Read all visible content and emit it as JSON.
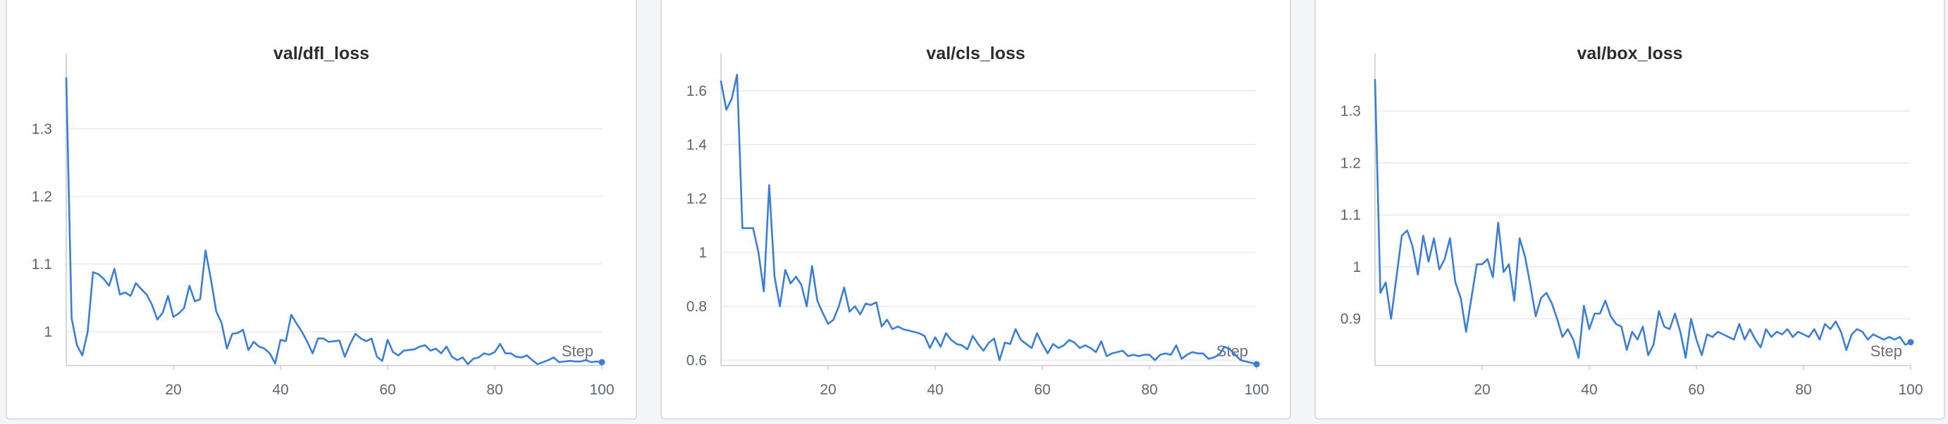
{
  "colors": {
    "line": "#3a7fd5",
    "grid": "#e8e9ec",
    "axis": "#c9ccd2",
    "text": "#5f6570"
  },
  "chart_data": [
    {
      "type": "line",
      "title": "val/dfl_loss",
      "xlabel": "Step",
      "ylabel": "",
      "xlim": [
        0,
        100
      ],
      "ylim": [
        0.95,
        1.38
      ],
      "xticks": [
        20,
        40,
        60,
        80,
        100
      ],
      "yticks": [
        1,
        1.1,
        1.2,
        1.3
      ],
      "ytick_labels": [
        "1",
        "1.1",
        "1.2",
        "1.3"
      ],
      "grid": true,
      "series": [
        {
          "values": [
            1.375,
            1.02,
            0.98,
            0.965,
            1.0,
            1.088,
            1.085,
            1.078,
            1.068,
            1.093,
            1.055,
            1.058,
            1.053,
            1.072,
            1.063,
            1.055,
            1.04,
            1.018,
            1.028,
            1.053,
            1.022,
            1.027,
            1.035,
            1.068,
            1.045,
            1.048,
            1.12,
            1.078,
            1.03,
            1.013,
            0.975,
            0.997,
            0.998,
            1.003,
            0.973,
            0.985,
            0.978,
            0.975,
            0.968,
            0.953,
            0.988,
            0.986,
            1.025,
            1.012,
            1.0,
            0.985,
            0.968,
            0.99,
            0.99,
            0.985,
            0.986,
            0.987,
            0.963,
            0.982,
            0.997,
            0.99,
            0.986,
            0.99,
            0.963,
            0.957,
            0.988,
            0.97,
            0.965,
            0.972,
            0.973,
            0.974,
            0.978,
            0.98,
            0.972,
            0.975,
            0.968,
            0.978,
            0.963,
            0.958,
            0.962,
            0.952,
            0.96,
            0.962,
            0.968,
            0.966,
            0.97,
            0.982,
            0.968,
            0.968,
            0.963,
            0.962,
            0.965,
            0.958,
            0.952,
            0.955,
            0.958,
            0.962,
            0.955,
            0.956,
            0.957,
            0.956,
            0.956,
            0.958,
            0.955,
            0.956,
            0.955
          ]
        }
      ]
    },
    {
      "type": "line",
      "title": "val/cls_loss",
      "xlabel": "Step",
      "ylabel": "",
      "xlim": [
        0,
        100
      ],
      "ylim": [
        0.58,
        1.66
      ],
      "xticks": [
        20,
        40,
        60,
        80,
        100
      ],
      "yticks": [
        0.6,
        0.8,
        1,
        1.2,
        1.4,
        1.6
      ],
      "ytick_labels": [
        "0.6",
        "0.8",
        "1",
        "1.2",
        "1.4",
        "1.6"
      ],
      "grid": true,
      "series": [
        {
          "values": [
            1.635,
            1.53,
            1.57,
            1.66,
            1.09,
            1.09,
            1.09,
            1.0,
            0.855,
            1.25,
            0.91,
            0.8,
            0.935,
            0.885,
            0.91,
            0.88,
            0.8,
            0.95,
            0.82,
            0.775,
            0.735,
            0.75,
            0.8,
            0.87,
            0.78,
            0.8,
            0.77,
            0.81,
            0.805,
            0.815,
            0.725,
            0.75,
            0.715,
            0.725,
            0.715,
            0.71,
            0.705,
            0.7,
            0.69,
            0.645,
            0.685,
            0.65,
            0.7,
            0.675,
            0.66,
            0.655,
            0.64,
            0.69,
            0.66,
            0.635,
            0.665,
            0.68,
            0.6,
            0.665,
            0.66,
            0.715,
            0.675,
            0.66,
            0.645,
            0.7,
            0.66,
            0.625,
            0.66,
            0.645,
            0.655,
            0.675,
            0.665,
            0.645,
            0.655,
            0.645,
            0.63,
            0.67,
            0.615,
            0.625,
            0.63,
            0.635,
            0.615,
            0.62,
            0.615,
            0.62,
            0.62,
            0.6,
            0.62,
            0.625,
            0.62,
            0.655,
            0.605,
            0.62,
            0.63,
            0.625,
            0.625,
            0.605,
            0.61,
            0.62,
            0.65,
            0.64,
            0.62,
            0.6,
            0.595,
            0.59,
            0.585
          ]
        }
      ]
    },
    {
      "type": "line",
      "title": "val/box_loss",
      "xlabel": "Step",
      "ylabel": "",
      "xlim": [
        0,
        100
      ],
      "ylim": [
        0.81,
        1.37
      ],
      "xticks": [
        20,
        40,
        60,
        80,
        100
      ],
      "yticks": [
        0.9,
        1,
        1.1,
        1.2,
        1.3
      ],
      "ytick_labels": [
        "0.9",
        "1",
        "1.1",
        "1.2",
        "1.3"
      ],
      "grid": true,
      "series": [
        {
          "values": [
            1.36,
            0.95,
            0.97,
            0.9,
            0.98,
            1.06,
            1.07,
            1.04,
            0.985,
            1.06,
            1.01,
            1.055,
            0.995,
            1.015,
            1.055,
            0.97,
            0.94,
            0.875,
            0.94,
            1.005,
            1.005,
            1.015,
            0.98,
            1.085,
            0.99,
            1.005,
            0.935,
            1.055,
            1.02,
            0.965,
            0.905,
            0.94,
            0.95,
            0.93,
            0.9,
            0.865,
            0.88,
            0.86,
            0.825,
            0.925,
            0.88,
            0.91,
            0.91,
            0.935,
            0.905,
            0.89,
            0.885,
            0.84,
            0.875,
            0.86,
            0.885,
            0.83,
            0.85,
            0.915,
            0.885,
            0.88,
            0.91,
            0.875,
            0.825,
            0.9,
            0.86,
            0.83,
            0.87,
            0.865,
            0.875,
            0.87,
            0.865,
            0.86,
            0.89,
            0.86,
            0.88,
            0.86,
            0.845,
            0.88,
            0.865,
            0.875,
            0.87,
            0.88,
            0.865,
            0.875,
            0.87,
            0.865,
            0.88,
            0.86,
            0.89,
            0.88,
            0.895,
            0.875,
            0.84,
            0.87,
            0.88,
            0.875,
            0.86,
            0.87,
            0.865,
            0.86,
            0.865,
            0.86,
            0.865,
            0.85,
            0.855
          ]
        }
      ]
    }
  ]
}
